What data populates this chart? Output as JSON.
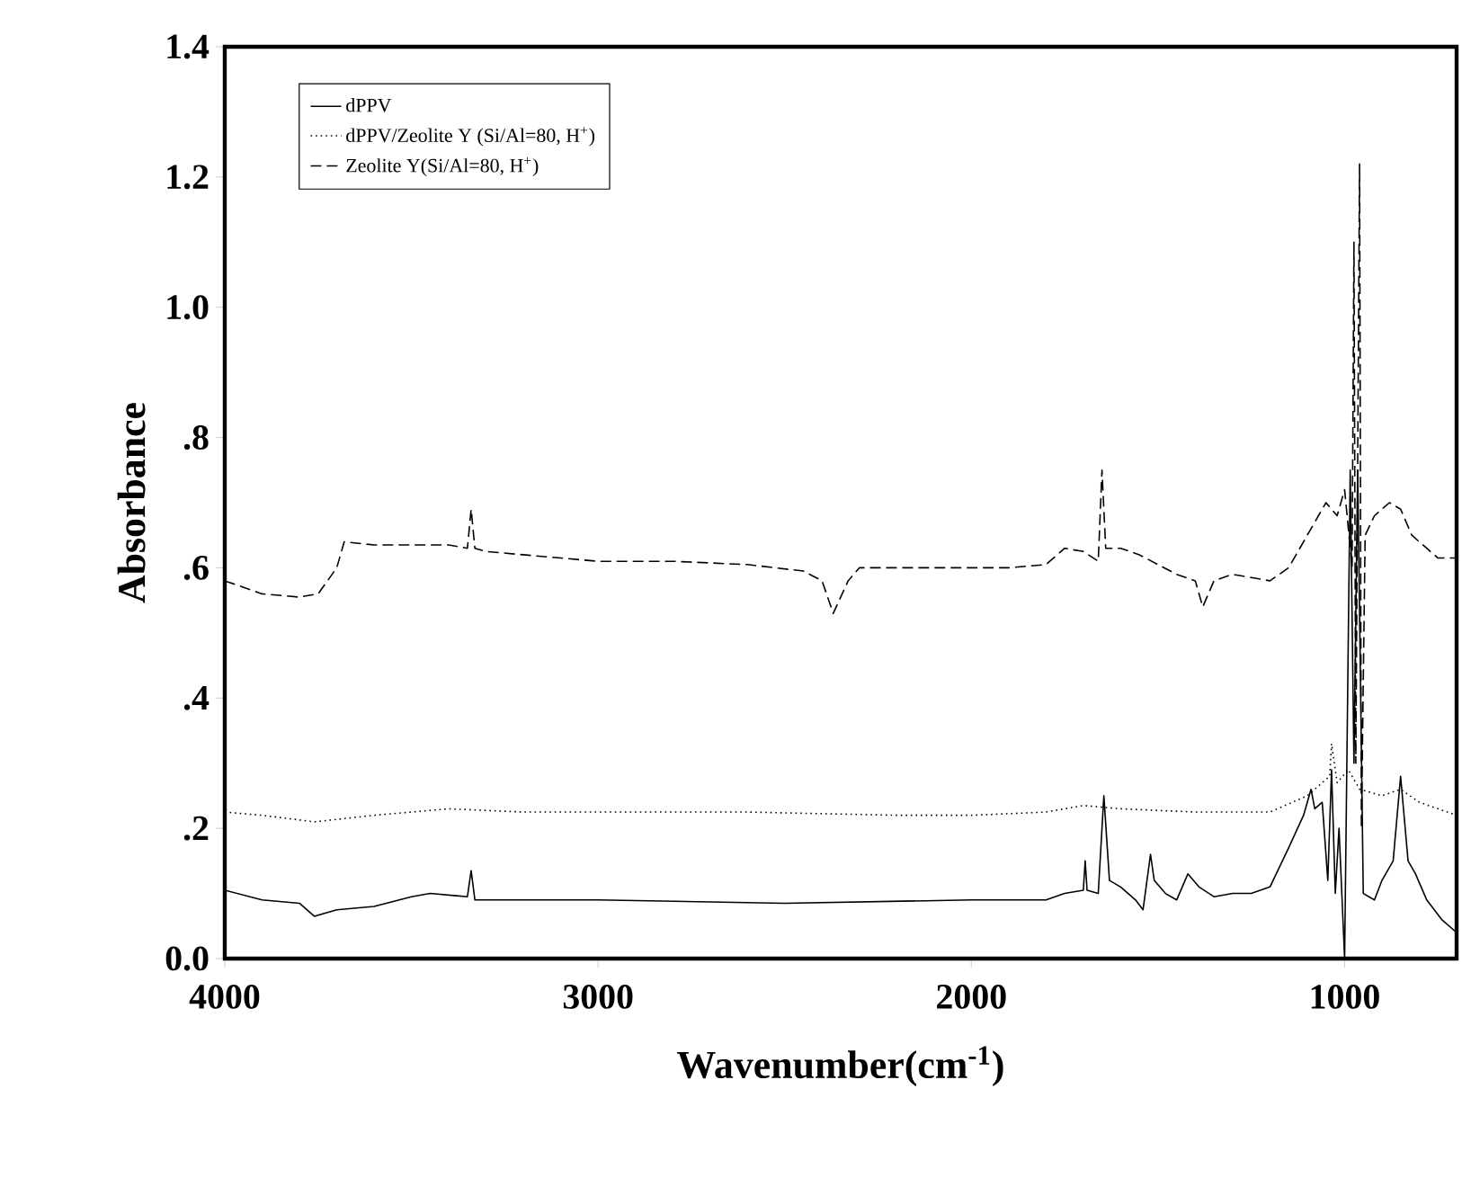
{
  "chart_data": {
    "type": "line",
    "xlabel": "Wavenumber(cm$^{-1}$)",
    "ylabel": "Absorbance",
    "xlim": [
      4000,
      700
    ],
    "xticks": [
      4000,
      3000,
      2000,
      1000
    ],
    "ylim": [
      0,
      1.4
    ],
    "yticks": [
      {
        "value": 0,
        "label": "0.0"
      },
      {
        "value": 0.2,
        "label": ".2"
      },
      {
        "value": 0.4,
        "label": ".4"
      },
      {
        "value": 0.6,
        "label": ".6"
      },
      {
        "value": 0.8,
        "label": ".8"
      },
      {
        "value": 1.0,
        "label": "1.0"
      },
      {
        "value": 1.2,
        "label": "1.2"
      },
      {
        "value": 1.4,
        "label": "1.4"
      }
    ],
    "legend": "top left",
    "grid": false,
    "series": [
      {
        "name": "dPPV",
        "color": "#000000",
        "line_style": "solid",
        "x": [
          4000,
          3900,
          3800,
          3760,
          3700,
          3600,
          3500,
          3450,
          3350,
          3340,
          3330,
          3200,
          3000,
          2500,
          2000,
          1800,
          1750,
          1700,
          1695,
          1690,
          1660,
          1645,
          1630,
          1600,
          1560,
          1540,
          1520,
          1510,
          1480,
          1450,
          1420,
          1390,
          1350,
          1300,
          1250,
          1200,
          1150,
          1110,
          1090,
          1080,
          1060,
          1045,
          1035,
          1025,
          1015,
          1000,
          985,
          975,
          965,
          950,
          920,
          900,
          870,
          850,
          830,
          810,
          780,
          740,
          700
        ],
        "values": [
          0.105,
          0.09,
          0.085,
          0.065,
          0.075,
          0.08,
          0.095,
          0.1,
          0.095,
          0.135,
          0.09,
          0.09,
          0.09,
          0.085,
          0.09,
          0.09,
          0.1,
          0.105,
          0.15,
          0.105,
          0.1,
          0.25,
          0.12,
          0.11,
          0.09,
          0.075,
          0.16,
          0.12,
          0.1,
          0.09,
          0.13,
          0.11,
          0.095,
          0.1,
          0.1,
          0.11,
          0.17,
          0.22,
          0.26,
          0.23,
          0.24,
          0.12,
          0.29,
          0.1,
          0.2,
          0.0,
          0.75,
          0.3,
          0.75,
          0.1,
          0.09,
          0.12,
          0.15,
          0.28,
          0.15,
          0.13,
          0.09,
          0.06,
          0.04
        ]
      },
      {
        "name": "dPPV/Zeolite Y (Si/Al=80, H$^{+}$)",
        "color": "#000000",
        "line_style": "dotted",
        "x": [
          4000,
          3900,
          3760,
          3600,
          3400,
          3200,
          3000,
          2600,
          2200,
          2000,
          1800,
          1700,
          1600,
          1400,
          1200,
          1100,
          1040,
          1035,
          1020,
          990,
          960,
          900,
          850,
          800,
          700
        ],
        "values": [
          0.225,
          0.22,
          0.21,
          0.22,
          0.23,
          0.225,
          0.225,
          0.225,
          0.22,
          0.22,
          0.225,
          0.235,
          0.23,
          0.225,
          0.225,
          0.25,
          0.28,
          0.33,
          0.27,
          0.29,
          0.26,
          0.25,
          0.26,
          0.24,
          0.22
        ]
      },
      {
        "name": "Zeolite Y(Si/Al=80, H$^{+}$)",
        "color": "#000000",
        "line_style": "dashed",
        "x": [
          4000,
          3900,
          3800,
          3750,
          3700,
          3680,
          3600,
          3500,
          3400,
          3350,
          3340,
          3330,
          3300,
          3100,
          3000,
          2800,
          2600,
          2450,
          2400,
          2370,
          2330,
          2300,
          2100,
          1900,
          1800,
          1750,
          1700,
          1660,
          1650,
          1640,
          1600,
          1550,
          1450,
          1400,
          1380,
          1350,
          1300,
          1200,
          1150,
          1100,
          1050,
          1020,
          1000,
          980,
          975,
          970,
          960,
          955,
          945,
          920,
          880,
          850,
          820,
          780,
          750,
          700
        ],
        "values": [
          0.58,
          0.56,
          0.555,
          0.56,
          0.6,
          0.64,
          0.635,
          0.635,
          0.635,
          0.63,
          0.69,
          0.63,
          0.625,
          0.615,
          0.61,
          0.61,
          0.605,
          0.595,
          0.58,
          0.53,
          0.58,
          0.6,
          0.6,
          0.6,
          0.605,
          0.63,
          0.625,
          0.61,
          0.75,
          0.63,
          0.63,
          0.62,
          0.59,
          0.58,
          0.54,
          0.58,
          0.59,
          0.58,
          0.6,
          0.65,
          0.7,
          0.68,
          0.72,
          0.6,
          1.1,
          0.3,
          1.22,
          0.2,
          0.65,
          0.68,
          0.7,
          0.69,
          0.65,
          0.63,
          0.615,
          0.615
        ]
      }
    ]
  }
}
